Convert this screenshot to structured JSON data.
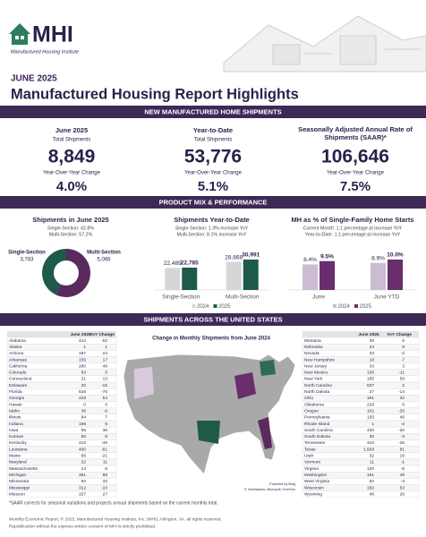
{
  "header": {
    "org": "MHI",
    "org_full": "Manufactured Housing Institute",
    "date": "JUNE 2025",
    "title": "Manufactured Housing Report Highlights"
  },
  "shipments": {
    "heading": "NEW MANUFACTURED HOME SHIPMENTS",
    "stats": [
      {
        "label": "June 2025",
        "sublabel": "Total Shipments",
        "value": "8,849",
        "change_label": "Year-Over-Year Change",
        "change": "4.0%"
      },
      {
        "label": "Year-to-Date",
        "sublabel": "Total Shipments",
        "value": "53,776",
        "change_label": "Year-Over-Year Change",
        "change": "5.1%"
      },
      {
        "label": "Seasonally Adjusted Annual Rate of Shipments (SAAR)*",
        "value": "106,646",
        "change_label": "Year-Over-Year Change",
        "change": "7.5%"
      }
    ]
  },
  "product_mix": {
    "heading": "PRODUCT MIX & PERFORMANCE"
  },
  "chart_data": [
    {
      "type": "pie",
      "title": "Shipments in June 2025",
      "notes": [
        "Single-Section: 42.8%",
        "Multi-Section: 57.2%"
      ],
      "categories": [
        "Single-Section",
        "Multi-Section"
      ],
      "values": [
        3783,
        5066
      ],
      "value_labels": [
        "3,783",
        "5,066"
      ],
      "colors": [
        "#1d5a49",
        "#5a2a5e"
      ]
    },
    {
      "type": "bar",
      "title": "Shipments Year-to-Date",
      "notes": [
        "Single-Section: 1.3% increase YoY",
        "Multi-Section: 8.1% increase YoY"
      ],
      "categories": [
        "Single-Section",
        "Multi-Section"
      ],
      "series": [
        {
          "name": "2024",
          "color": "#d6d6d6",
          "values": [
            22489,
            28668
          ],
          "value_labels": [
            "22,489",
            "28,668"
          ]
        },
        {
          "name": "2025",
          "color": "#1d5a49",
          "values": [
            22785,
            30991
          ],
          "value_labels": [
            "22,785",
            "30,991"
          ]
        }
      ],
      "legend": "bottom"
    },
    {
      "type": "bar",
      "title": "MH as % of Single-Family Home Starts",
      "notes": [
        "Current Month: 1.1 percentage pt increase YoY",
        "Year-to-Date: 1.1 percentage pt increase YoY"
      ],
      "categories": [
        "June",
        "June YTD"
      ],
      "series": [
        {
          "name": "2024",
          "color": "#cbbcd3",
          "values": [
            8.4,
            8.9
          ],
          "value_labels": [
            "8.4%",
            "8.9%"
          ]
        },
        {
          "name": "2025",
          "color": "#6a2d6d",
          "values": [
            9.5,
            10.0
          ],
          "value_labels": [
            "9.5%",
            "10.0%"
          ]
        }
      ],
      "legend": "bottom"
    }
  ],
  "states": {
    "heading": "SHIPMENTS ACROSS THE UNITED STATES",
    "map_title": "Change in Monthly Shipments from June 2024",
    "map_credits": [
      "Powered by Bing",
      "© GeoNames, Microsoft, TomTom"
    ],
    "columns": [
      "June 2025",
      "YoY Change"
    ],
    "left_rows": [
      [
        "Alabama",
        "412",
        "-52"
      ],
      [
        "Alaska",
        "1",
        "1"
      ],
      [
        "Arizona",
        "197",
        "24"
      ],
      [
        "Arkansas",
        "155",
        "17"
      ],
      [
        "California",
        "280",
        "46"
      ],
      [
        "Colorado",
        "83",
        "5"
      ],
      [
        "Connecticut",
        "21",
        "13"
      ],
      [
        "Delaware",
        "20",
        "-15"
      ],
      [
        "Florida",
        "516",
        "-75"
      ],
      [
        "Georgia",
        "429",
        "54"
      ],
      [
        "Hawaii",
        "0",
        "0"
      ],
      [
        "Idaho",
        "36",
        "-6"
      ],
      [
        "Illinois",
        "94",
        "7"
      ],
      [
        "Indiana",
        "166",
        "6"
      ],
      [
        "Iowa",
        "55",
        "36"
      ],
      [
        "Kansas",
        "50",
        "8"
      ],
      [
        "Kentucky",
        "212",
        "-46"
      ],
      [
        "Louisiana",
        "400",
        "-61"
      ],
      [
        "Maine",
        "66",
        "-21"
      ],
      [
        "Maryland",
        "22",
        "11"
      ],
      [
        "Massachusetts",
        "14",
        "-3"
      ],
      [
        "Michigan",
        "361",
        "98"
      ],
      [
        "Minnesota",
        "92",
        "32"
      ],
      [
        "Mississippi",
        "312",
        "-10"
      ],
      [
        "Missouri",
        "157",
        "27"
      ]
    ],
    "right_rows": [
      [
        "Montana",
        "36",
        "5"
      ],
      [
        "Nebraska",
        "34",
        "8"
      ],
      [
        "Nevada",
        "43",
        "-2"
      ],
      [
        "New Hampshire",
        "18",
        "-7"
      ],
      [
        "New Jersey",
        "33",
        "3"
      ],
      [
        "New Mexico",
        "136",
        "-11"
      ],
      [
        "New York",
        "185",
        "59"
      ],
      [
        "North Carolina",
        "537",
        "2"
      ],
      [
        "North Dakota",
        "27",
        "-14"
      ],
      [
        "Ohio",
        "181",
        "32"
      ],
      [
        "Oklahoma",
        "228",
        "6"
      ],
      [
        "Oregon",
        "102",
        "-25"
      ],
      [
        "Pennsylvania",
        "155",
        "40"
      ],
      [
        "Rhode Island",
        "1",
        "-2"
      ],
      [
        "South Carolina",
        "430",
        "-30"
      ],
      [
        "South Dakota",
        "30",
        "-3"
      ],
      [
        "Tennessee",
        "310",
        "-25"
      ],
      [
        "Texas",
        "1,509",
        "81"
      ],
      [
        "Utah",
        "32",
        "16"
      ],
      [
        "Vermont",
        "11",
        "-1"
      ],
      [
        "Virginia",
        "120",
        "-5"
      ],
      [
        "Washington",
        "151",
        "49"
      ],
      [
        "West Virginia",
        "82",
        "-3"
      ],
      [
        "Wisconsin",
        "150",
        "63"
      ],
      [
        "Wyoming",
        "48",
        "26"
      ]
    ]
  },
  "footnote": "*SAAR corrects for seasonal variations and projects annual shipments based on the current monthly total.",
  "footer": [
    "Monthly Economic Report, © 2025, Manufactured Housing Institute, Inc. (MHI), Arlington, VA. all rights reserved.",
    "Republication without the express written consent of MHI is strictly prohibited."
  ]
}
